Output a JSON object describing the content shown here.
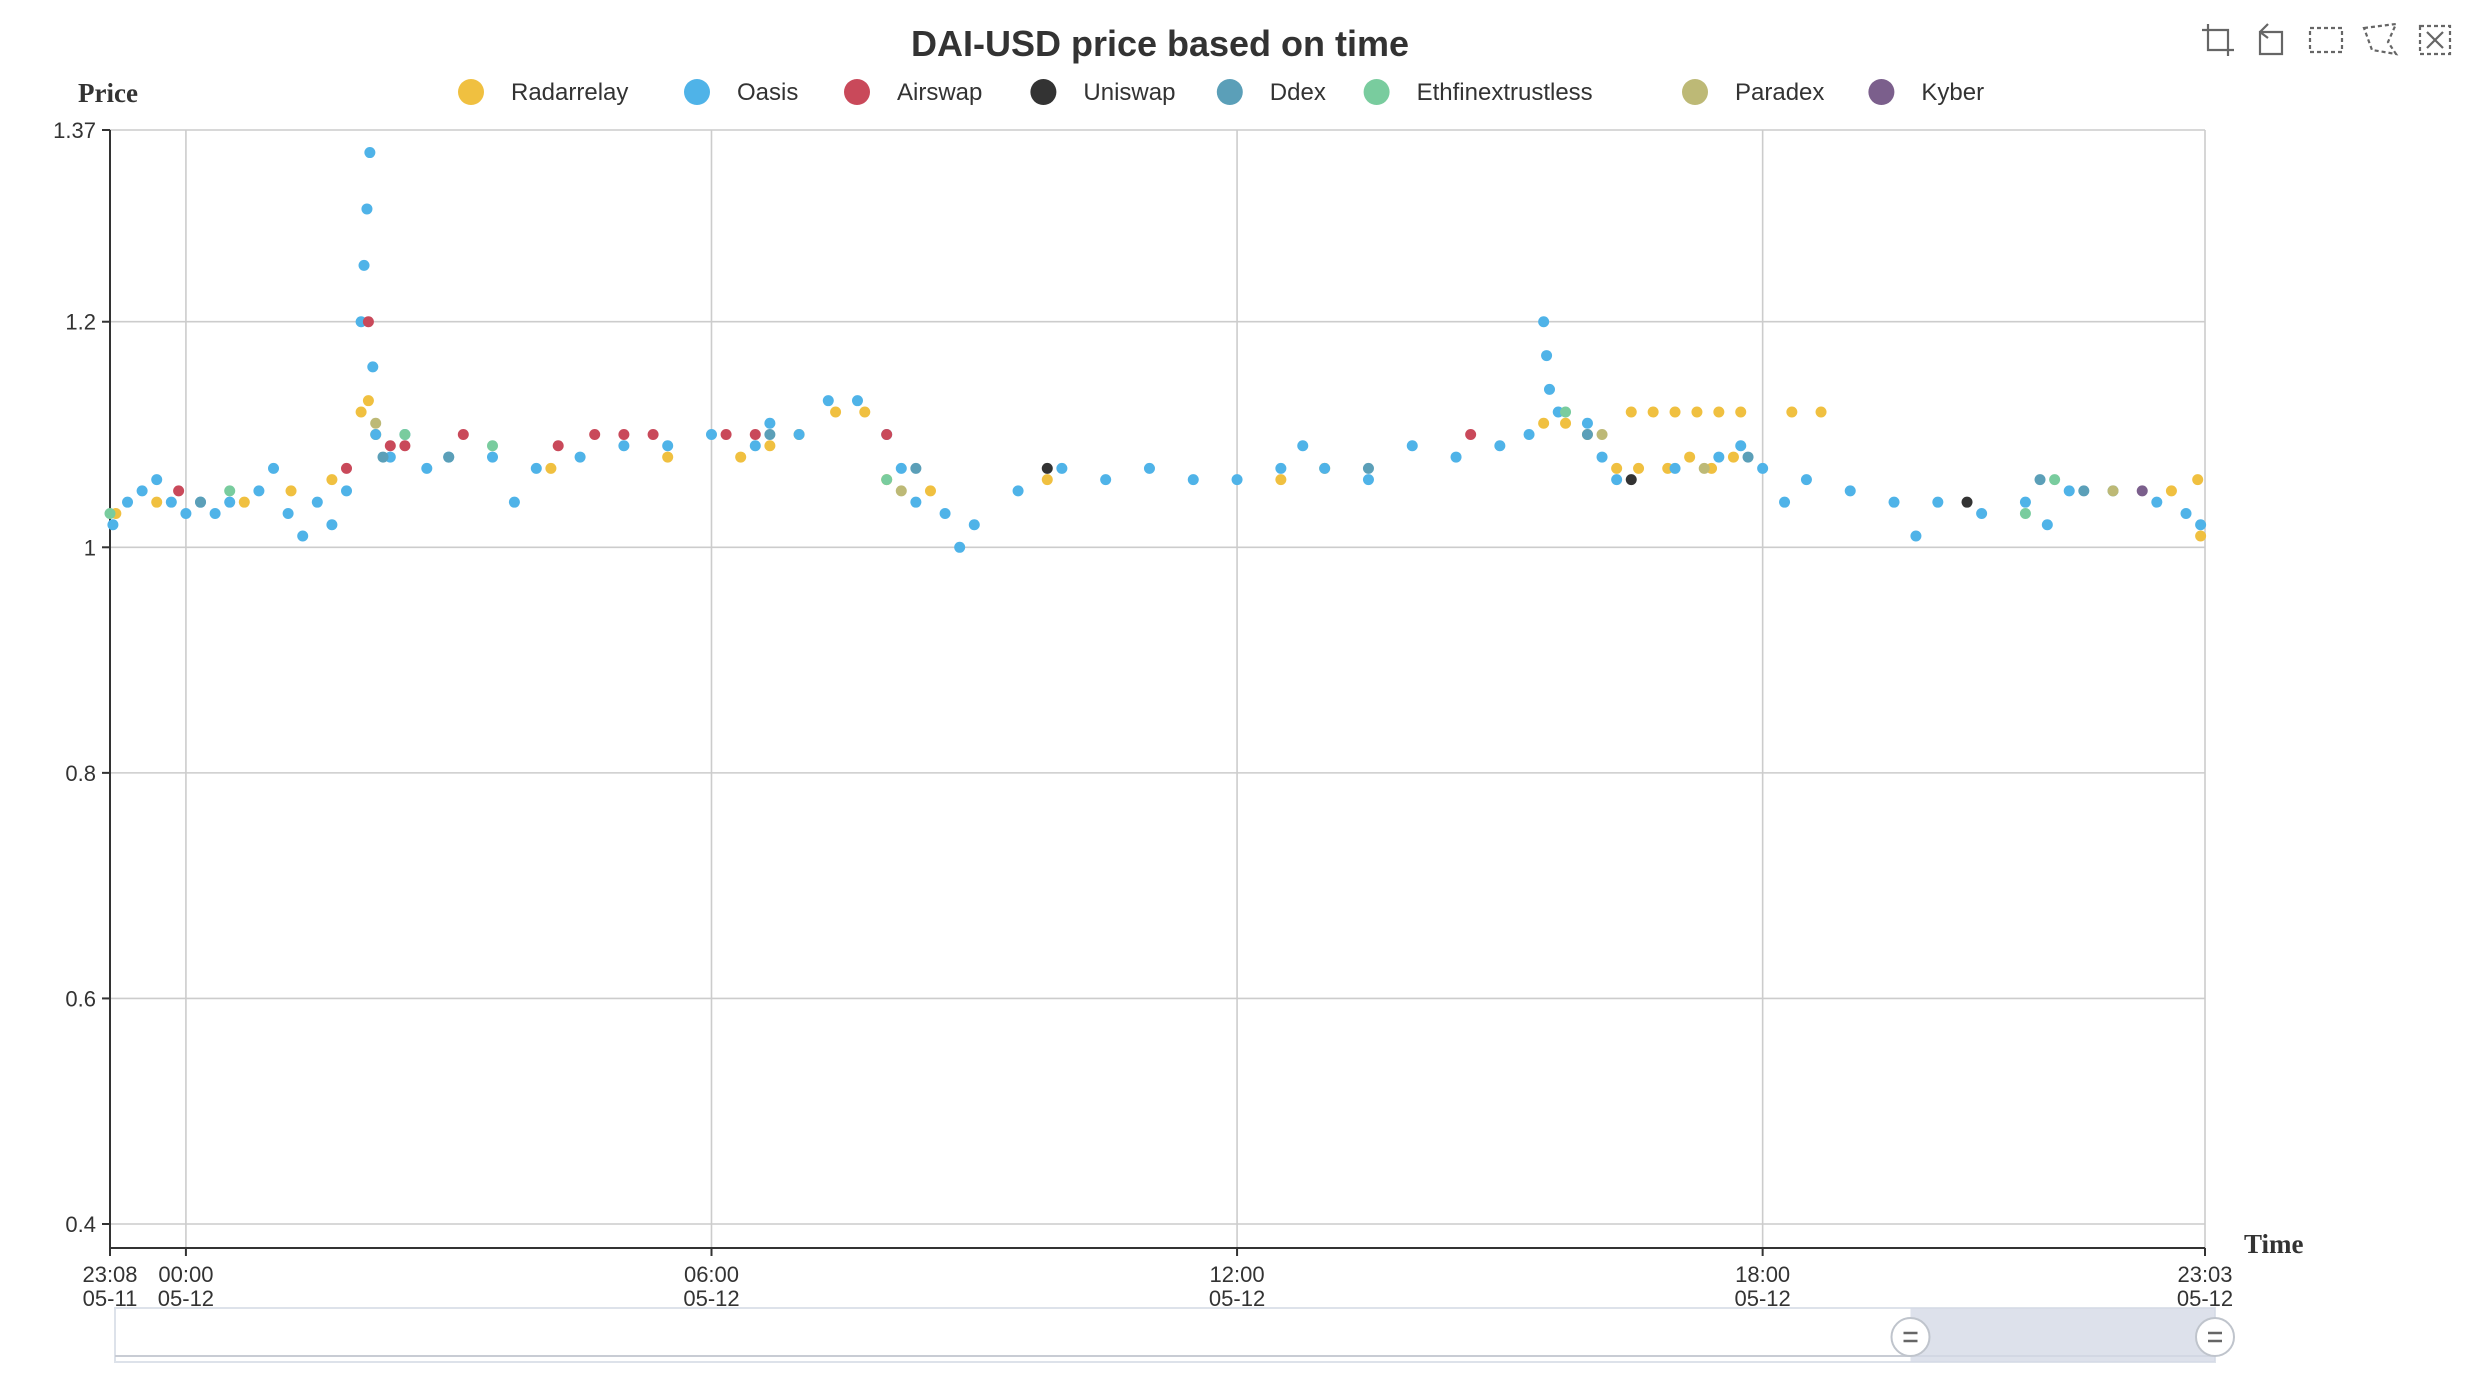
{
  "chart_data": {
    "type": "scatter",
    "title": "DAI-USD price based on time",
    "xlabel": "Time",
    "ylabel": "Price",
    "x_axis": {
      "min": "2018-05-11 23:08",
      "max": "2018-05-12 23:03",
      "ticks": [
        {
          "value": "2018-05-11 23:08",
          "label": [
            "23:08",
            "05-11"
          ]
        },
        {
          "value": "2018-05-12 00:00",
          "label": [
            "00:00",
            "05-12"
          ]
        },
        {
          "value": "2018-05-12 06:00",
          "label": [
            "06:00",
            "05-12"
          ]
        },
        {
          "value": "2018-05-12 12:00",
          "label": [
            "12:00",
            "05-12"
          ]
        },
        {
          "value": "2018-05-12 18:00",
          "label": [
            "18:00",
            "05-12"
          ]
        },
        {
          "value": "2018-05-12 23:03",
          "label": [
            "23:03",
            "05-12"
          ]
        }
      ]
    },
    "y_axis": {
      "min": 0.4,
      "max": 1.37,
      "ticks": [
        {
          "value": 0.4,
          "label": "0.4"
        },
        {
          "value": 0.6,
          "label": "0.6"
        },
        {
          "value": 0.8,
          "label": "0.8"
        },
        {
          "value": 1.0,
          "label": "1"
        },
        {
          "value": 1.2,
          "label": "1.2"
        },
        {
          "value": 1.37,
          "label": "1.37"
        }
      ]
    },
    "grid": true,
    "legend_position": "top-center",
    "data_zoom": {
      "start_percent": 85.5,
      "end_percent": 100
    },
    "series": [
      {
        "name": "Radarrelay",
        "color": "#f0c040",
        "points": [
          [
            "2018-05-11 23:12",
            1.03
          ],
          [
            "2018-05-11 23:40",
            1.04
          ],
          [
            "2018-05-12 00:40",
            1.04
          ],
          [
            "2018-05-12 01:12",
            1.05
          ],
          [
            "2018-05-12 01:40",
            1.06
          ],
          [
            "2018-05-12 02:00",
            1.12
          ],
          [
            "2018-05-12 02:05",
            1.13
          ],
          [
            "2018-05-12 02:10",
            1.1
          ],
          [
            "2018-05-12 04:10",
            1.07
          ],
          [
            "2018-05-12 05:30",
            1.08
          ],
          [
            "2018-05-12 06:20",
            1.08
          ],
          [
            "2018-05-12 06:40",
            1.09
          ],
          [
            "2018-05-12 07:00",
            1.1
          ],
          [
            "2018-05-12 07:25",
            1.12
          ],
          [
            "2018-05-12 07:45",
            1.12
          ],
          [
            "2018-05-12 08:00",
            1.06
          ],
          [
            "2018-05-12 08:30",
            1.05
          ],
          [
            "2018-05-12 09:50",
            1.06
          ],
          [
            "2018-05-12 12:30",
            1.06
          ],
          [
            "2018-05-12 13:00",
            1.07
          ],
          [
            "2018-05-12 15:30",
            1.11
          ],
          [
            "2018-05-12 15:45",
            1.11
          ],
          [
            "2018-05-12 16:00",
            1.1
          ],
          [
            "2018-05-12 16:20",
            1.07
          ],
          [
            "2018-05-12 16:30",
            1.12
          ],
          [
            "2018-05-12 16:45",
            1.12
          ],
          [
            "2018-05-12 17:00",
            1.12
          ],
          [
            "2018-05-12 17:15",
            1.12
          ],
          [
            "2018-05-12 17:30",
            1.12
          ],
          [
            "2018-05-12 17:45",
            1.12
          ],
          [
            "2018-05-12 16:35",
            1.07
          ],
          [
            "2018-05-12 16:55",
            1.07
          ],
          [
            "2018-05-12 17:10",
            1.08
          ],
          [
            "2018-05-12 17:25",
            1.07
          ],
          [
            "2018-05-12 17:40",
            1.08
          ],
          [
            "2018-05-12 18:20",
            1.12
          ],
          [
            "2018-05-12 18:40",
            1.12
          ],
          [
            "2018-05-12 22:40",
            1.05
          ],
          [
            "2018-05-12 23:00",
            1.01
          ],
          [
            "2018-05-12 22:58",
            1.06
          ]
        ]
      },
      {
        "name": "Oasis",
        "color": "#4fb3e8",
        "points": [
          [
            "2018-05-11 23:10",
            1.02
          ],
          [
            "2018-05-11 23:20",
            1.04
          ],
          [
            "2018-05-11 23:30",
            1.05
          ],
          [
            "2018-05-11 23:40",
            1.06
          ],
          [
            "2018-05-11 23:50",
            1.04
          ],
          [
            "2018-05-12 00:00",
            1.03
          ],
          [
            "2018-05-12 00:10",
            1.04
          ],
          [
            "2018-05-12 00:20",
            1.03
          ],
          [
            "2018-05-12 00:30",
            1.04
          ],
          [
            "2018-05-12 00:50",
            1.05
          ],
          [
            "2018-05-12 01:00",
            1.07
          ],
          [
            "2018-05-12 01:10",
            1.03
          ],
          [
            "2018-05-12 01:20",
            1.01
          ],
          [
            "2018-05-12 01:30",
            1.04
          ],
          [
            "2018-05-12 01:40",
            1.02
          ],
          [
            "2018-05-12 01:50",
            1.05
          ],
          [
            "2018-05-12 02:00",
            1.2
          ],
          [
            "2018-05-12 02:02",
            1.25
          ],
          [
            "2018-05-12 02:04",
            1.3
          ],
          [
            "2018-05-12 02:06",
            1.35
          ],
          [
            "2018-05-12 02:08",
            1.16
          ],
          [
            "2018-05-12 02:10",
            1.1
          ],
          [
            "2018-05-12 02:20",
            1.08
          ],
          [
            "2018-05-12 02:30",
            1.1
          ],
          [
            "2018-05-12 02:45",
            1.07
          ],
          [
            "2018-05-12 03:00",
            1.08
          ],
          [
            "2018-05-12 03:30",
            1.08
          ],
          [
            "2018-05-12 03:45",
            1.04
          ],
          [
            "2018-05-12 04:00",
            1.07
          ],
          [
            "2018-05-12 04:30",
            1.08
          ],
          [
            "2018-05-12 05:00",
            1.09
          ],
          [
            "2018-05-12 05:30",
            1.09
          ],
          [
            "2018-05-12 06:00",
            1.1
          ],
          [
            "2018-05-12 06:30",
            1.09
          ],
          [
            "2018-05-12 06:40",
            1.11
          ],
          [
            "2018-05-12 07:00",
            1.1
          ],
          [
            "2018-05-12 07:20",
            1.13
          ],
          [
            "2018-05-12 07:40",
            1.13
          ],
          [
            "2018-05-12 08:00",
            1.1
          ],
          [
            "2018-05-12 08:10",
            1.07
          ],
          [
            "2018-05-12 08:20",
            1.04
          ],
          [
            "2018-05-12 08:40",
            1.03
          ],
          [
            "2018-05-12 08:50",
            1.0
          ],
          [
            "2018-05-12 09:00",
            1.02
          ],
          [
            "2018-05-12 09:30",
            1.05
          ],
          [
            "2018-05-12 10:00",
            1.07
          ],
          [
            "2018-05-12 10:30",
            1.06
          ],
          [
            "2018-05-12 11:00",
            1.07
          ],
          [
            "2018-05-12 11:30",
            1.06
          ],
          [
            "2018-05-12 12:00",
            1.06
          ],
          [
            "2018-05-12 12:30",
            1.07
          ],
          [
            "2018-05-12 12:45",
            1.09
          ],
          [
            "2018-05-12 13:00",
            1.07
          ],
          [
            "2018-05-12 13:30",
            1.06
          ],
          [
            "2018-05-12 14:00",
            1.09
          ],
          [
            "2018-05-12 14:30",
            1.08
          ],
          [
            "2018-05-12 15:00",
            1.09
          ],
          [
            "2018-05-12 15:20",
            1.1
          ],
          [
            "2018-05-12 15:30",
            1.2
          ],
          [
            "2018-05-12 15:32",
            1.17
          ],
          [
            "2018-05-12 15:34",
            1.14
          ],
          [
            "2018-05-12 15:40",
            1.12
          ],
          [
            "2018-05-12 16:00",
            1.11
          ],
          [
            "2018-05-12 16:10",
            1.08
          ],
          [
            "2018-05-12 16:20",
            1.06
          ],
          [
            "2018-05-12 17:00",
            1.07
          ],
          [
            "2018-05-12 17:30",
            1.08
          ],
          [
            "2018-05-12 17:45",
            1.09
          ],
          [
            "2018-05-12 18:00",
            1.07
          ],
          [
            "2018-05-12 18:15",
            1.04
          ],
          [
            "2018-05-12 18:30",
            1.06
          ],
          [
            "2018-05-12 19:00",
            1.05
          ],
          [
            "2018-05-12 19:30",
            1.04
          ],
          [
            "2018-05-12 19:45",
            1.01
          ],
          [
            "2018-05-12 20:00",
            1.04
          ],
          [
            "2018-05-12 20:30",
            1.03
          ],
          [
            "2018-05-12 21:00",
            1.04
          ],
          [
            "2018-05-12 21:15",
            1.02
          ],
          [
            "2018-05-12 21:30",
            1.05
          ],
          [
            "2018-05-12 22:00",
            1.05
          ],
          [
            "2018-05-12 22:30",
            1.04
          ],
          [
            "2018-05-12 22:50",
            1.03
          ],
          [
            "2018-05-12 23:00",
            1.02
          ]
        ]
      },
      {
        "name": "Airswap",
        "color": "#c9495a",
        "points": [
          [
            "2018-05-11 23:55",
            1.05
          ],
          [
            "2018-05-12 01:50",
            1.07
          ],
          [
            "2018-05-12 02:05",
            1.2
          ],
          [
            "2018-05-12 02:20",
            1.09
          ],
          [
            "2018-05-12 02:30",
            1.09
          ],
          [
            "2018-05-12 03:10",
            1.1
          ],
          [
            "2018-05-12 04:15",
            1.09
          ],
          [
            "2018-05-12 04:40",
            1.1
          ],
          [
            "2018-05-12 05:00",
            1.1
          ],
          [
            "2018-05-12 05:20",
            1.1
          ],
          [
            "2018-05-12 06:10",
            1.1
          ],
          [
            "2018-05-12 06:30",
            1.1
          ],
          [
            "2018-05-12 08:00",
            1.1
          ],
          [
            "2018-05-12 14:40",
            1.1
          ]
        ]
      },
      {
        "name": "Uniswap",
        "color": "#333333",
        "points": [
          [
            "2018-05-12 09:50",
            1.07
          ],
          [
            "2018-05-12 16:30",
            1.06
          ],
          [
            "2018-05-12 20:20",
            1.04
          ]
        ]
      },
      {
        "name": "Ddex",
        "color": "#5b9fb8",
        "points": [
          [
            "2018-05-12 00:10",
            1.04
          ],
          [
            "2018-05-12 02:15",
            1.08
          ],
          [
            "2018-05-12 03:00",
            1.08
          ],
          [
            "2018-05-12 06:40",
            1.1
          ],
          [
            "2018-05-12 08:20",
            1.07
          ],
          [
            "2018-05-12 13:30",
            1.07
          ],
          [
            "2018-05-12 16:00",
            1.1
          ],
          [
            "2018-05-12 17:50",
            1.08
          ],
          [
            "2018-05-12 21:10",
            1.06
          ],
          [
            "2018-05-12 21:40",
            1.05
          ]
        ]
      },
      {
        "name": "Ethfinextrustless",
        "color": "#79cc9e",
        "points": [
          [
            "2018-05-11 23:08",
            1.03
          ],
          [
            "2018-05-12 00:30",
            1.05
          ],
          [
            "2018-05-12 02:30",
            1.1
          ],
          [
            "2018-05-12 03:30",
            1.09
          ],
          [
            "2018-05-12 08:00",
            1.06
          ],
          [
            "2018-05-12 15:45",
            1.12
          ],
          [
            "2018-05-12 21:00",
            1.03
          ],
          [
            "2018-05-12 21:20",
            1.06
          ]
        ]
      },
      {
        "name": "Paradex",
        "color": "#bdb976",
        "points": [
          [
            "2018-05-12 02:10",
            1.11
          ],
          [
            "2018-05-12 08:10",
            1.05
          ],
          [
            "2018-05-12 16:10",
            1.1
          ],
          [
            "2018-05-12 17:20",
            1.07
          ],
          [
            "2018-05-12 22:00",
            1.05
          ]
        ]
      },
      {
        "name": "Kyber",
        "color": "#7b5f8c",
        "points": [
          [
            "2018-05-12 22:20",
            1.05
          ]
        ]
      }
    ]
  },
  "toolbox": {
    "icons": [
      "zoom-icon",
      "zoom-reset-icon",
      "rect-select-icon",
      "polygon-select-icon",
      "clear-select-icon"
    ]
  }
}
